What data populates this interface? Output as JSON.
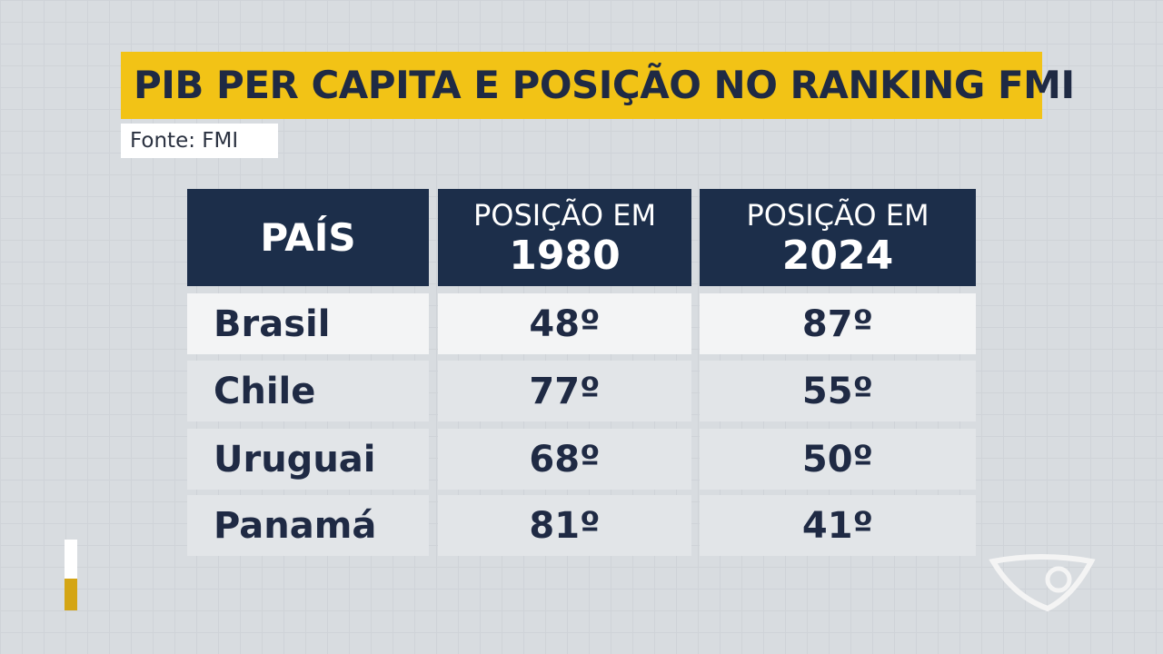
{
  "title": "PIB PER CAPITA E POSIÇÃO NO RANKING FMI",
  "source": "Fonte: FMI",
  "table": {
    "header": [
      {
        "line1": "PAÍS"
      },
      {
        "line1": "POSIÇÃO EM",
        "line2": "1980"
      },
      {
        "line1": "POSIÇÃO EM",
        "line2": "2024"
      }
    ],
    "rows": [
      [
        "Brasil",
        "48º",
        "87º"
      ],
      [
        "Chile",
        "77º",
        "55º"
      ],
      [
        "Uruguai",
        "68º",
        "50º"
      ],
      [
        "Panamá",
        "81º",
        "41º"
      ]
    ]
  }
}
